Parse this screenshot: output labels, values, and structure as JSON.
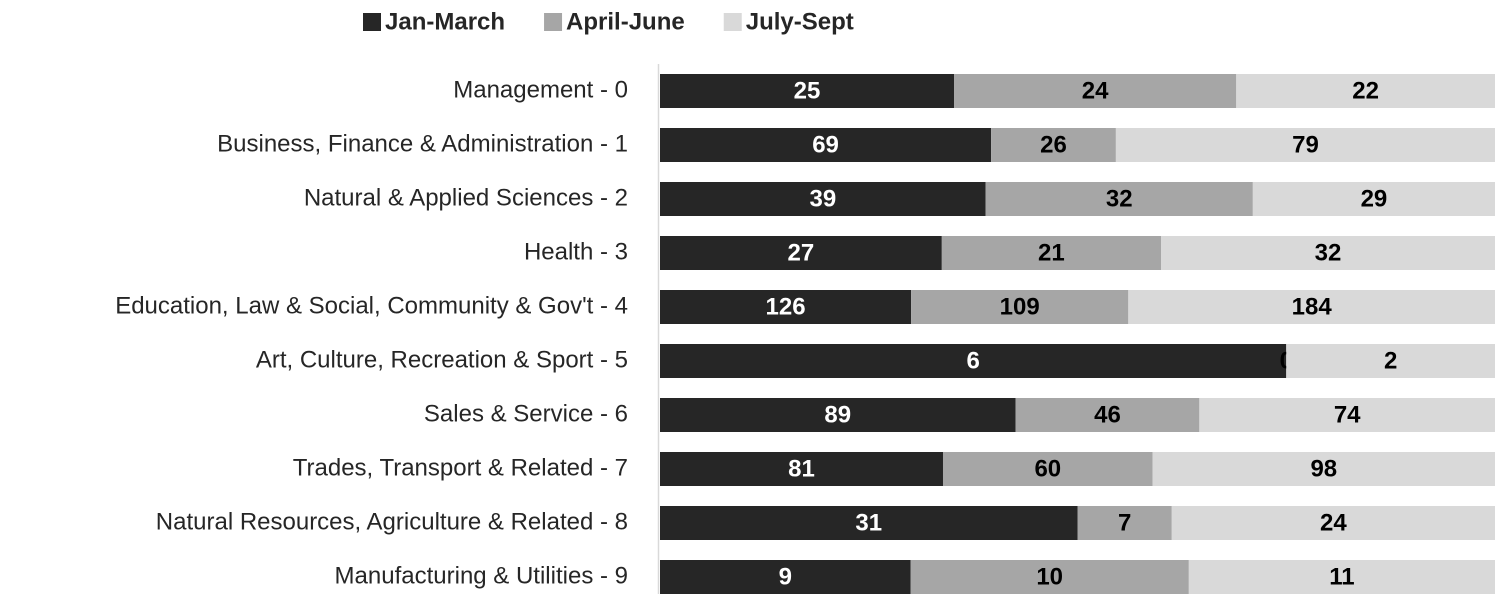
{
  "chart_data": {
    "type": "bar",
    "orientation": "horizontal",
    "stacking": "percent",
    "legend": "top",
    "categories": [
      "Management - 0",
      "Business, Finance & Administration - 1",
      "Natural & Applied Sciences - 2",
      "Health - 3",
      "Education, Law & Social, Community & Gov't - 4",
      "Art, Culture, Recreation & Sport - 5",
      "Sales & Service - 6",
      "Trades, Transport & Related - 7",
      "Natural Resources, Agriculture & Related - 8",
      "Manufacturing & Utilities - 9"
    ],
    "series": [
      {
        "name": "Jan-March",
        "color": "#262626",
        "label_color": "#ffffff",
        "values": [
          25,
          69,
          39,
          27,
          126,
          6,
          89,
          81,
          31,
          9
        ]
      },
      {
        "name": "April-June",
        "color": "#a6a6a6",
        "label_color": "#000000",
        "values": [
          24,
          26,
          32,
          21,
          109,
          0,
          46,
          60,
          7,
          10
        ]
      },
      {
        "name": "July-Sept",
        "color": "#d9d9d9",
        "label_color": "#000000",
        "values": [
          22,
          79,
          29,
          32,
          184,
          2,
          74,
          98,
          24,
          11
        ]
      }
    ]
  }
}
